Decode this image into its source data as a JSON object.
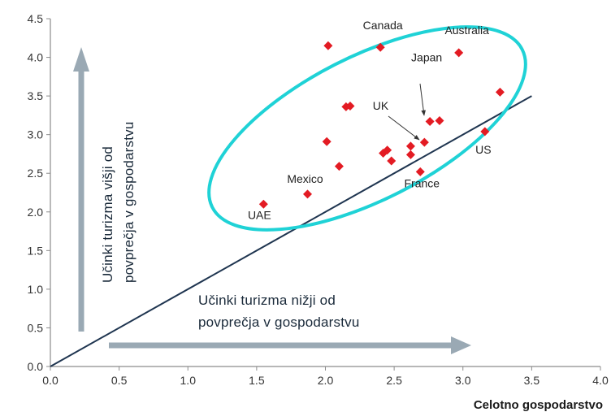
{
  "chart_data": {
    "type": "scatter",
    "xlabel": "Celotno gospodarstvo",
    "ylabel": "",
    "xlim": [
      0.0,
      4.0
    ],
    "ylim": [
      0.0,
      4.5
    ],
    "x_ticks": [
      "0.0",
      "0.5",
      "1.0",
      "1.5",
      "2.0",
      "2.5",
      "3.0",
      "3.5",
      "4.0"
    ],
    "y_ticks": [
      "0.0",
      "0.5",
      "1.0",
      "1.5",
      "2.0",
      "2.5",
      "3.0",
      "3.5",
      "4.0",
      "4.5"
    ],
    "grid": false,
    "points": [
      {
        "x": 1.55,
        "y": 2.1,
        "label": "UAE"
      },
      {
        "x": 1.87,
        "y": 2.23,
        "label": "Mexico"
      },
      {
        "x": 2.02,
        "y": 4.15,
        "label": ""
      },
      {
        "x": 2.01,
        "y": 2.91,
        "label": ""
      },
      {
        "x": 2.1,
        "y": 2.59,
        "label": ""
      },
      {
        "x": 2.15,
        "y": 3.36,
        "label": ""
      },
      {
        "x": 2.18,
        "y": 3.37,
        "label": ""
      },
      {
        "x": 2.4,
        "y": 4.13,
        "label": "Canada"
      },
      {
        "x": 2.42,
        "y": 2.76,
        "label": ""
      },
      {
        "x": 2.45,
        "y": 2.8,
        "label": ""
      },
      {
        "x": 2.48,
        "y": 2.66,
        "label": ""
      },
      {
        "x": 2.62,
        "y": 2.85,
        "label": "UK"
      },
      {
        "x": 2.62,
        "y": 2.74,
        "label": ""
      },
      {
        "x": 2.69,
        "y": 2.52,
        "label": "France"
      },
      {
        "x": 2.72,
        "y": 2.9,
        "label": ""
      },
      {
        "x": 2.76,
        "y": 3.17,
        "label": "Japan"
      },
      {
        "x": 2.83,
        "y": 3.18,
        "label": ""
      },
      {
        "x": 2.97,
        "y": 4.06,
        "label": "Australia"
      },
      {
        "x": 3.16,
        "y": 3.04,
        "label": "US"
      },
      {
        "x": 3.27,
        "y": 3.55,
        "label": ""
      }
    ],
    "reference_line": {
      "from": [
        0.0,
        0.0
      ],
      "to": [
        3.5,
        3.5
      ]
    },
    "annotations": {
      "upper_region": [
        "Učinki turizma višji od",
        "povprečja v gospodarstvu"
      ],
      "lower_region": [
        "Učinki turizma nižji od",
        "povprečja v gospodarstvu"
      ]
    },
    "colors": {
      "points": "#e31b23",
      "reference_line": "#1f3550",
      "ellipse": "#1fd2d6",
      "arrows": "#9aa9b4",
      "axis": "#8c8c8c"
    }
  }
}
